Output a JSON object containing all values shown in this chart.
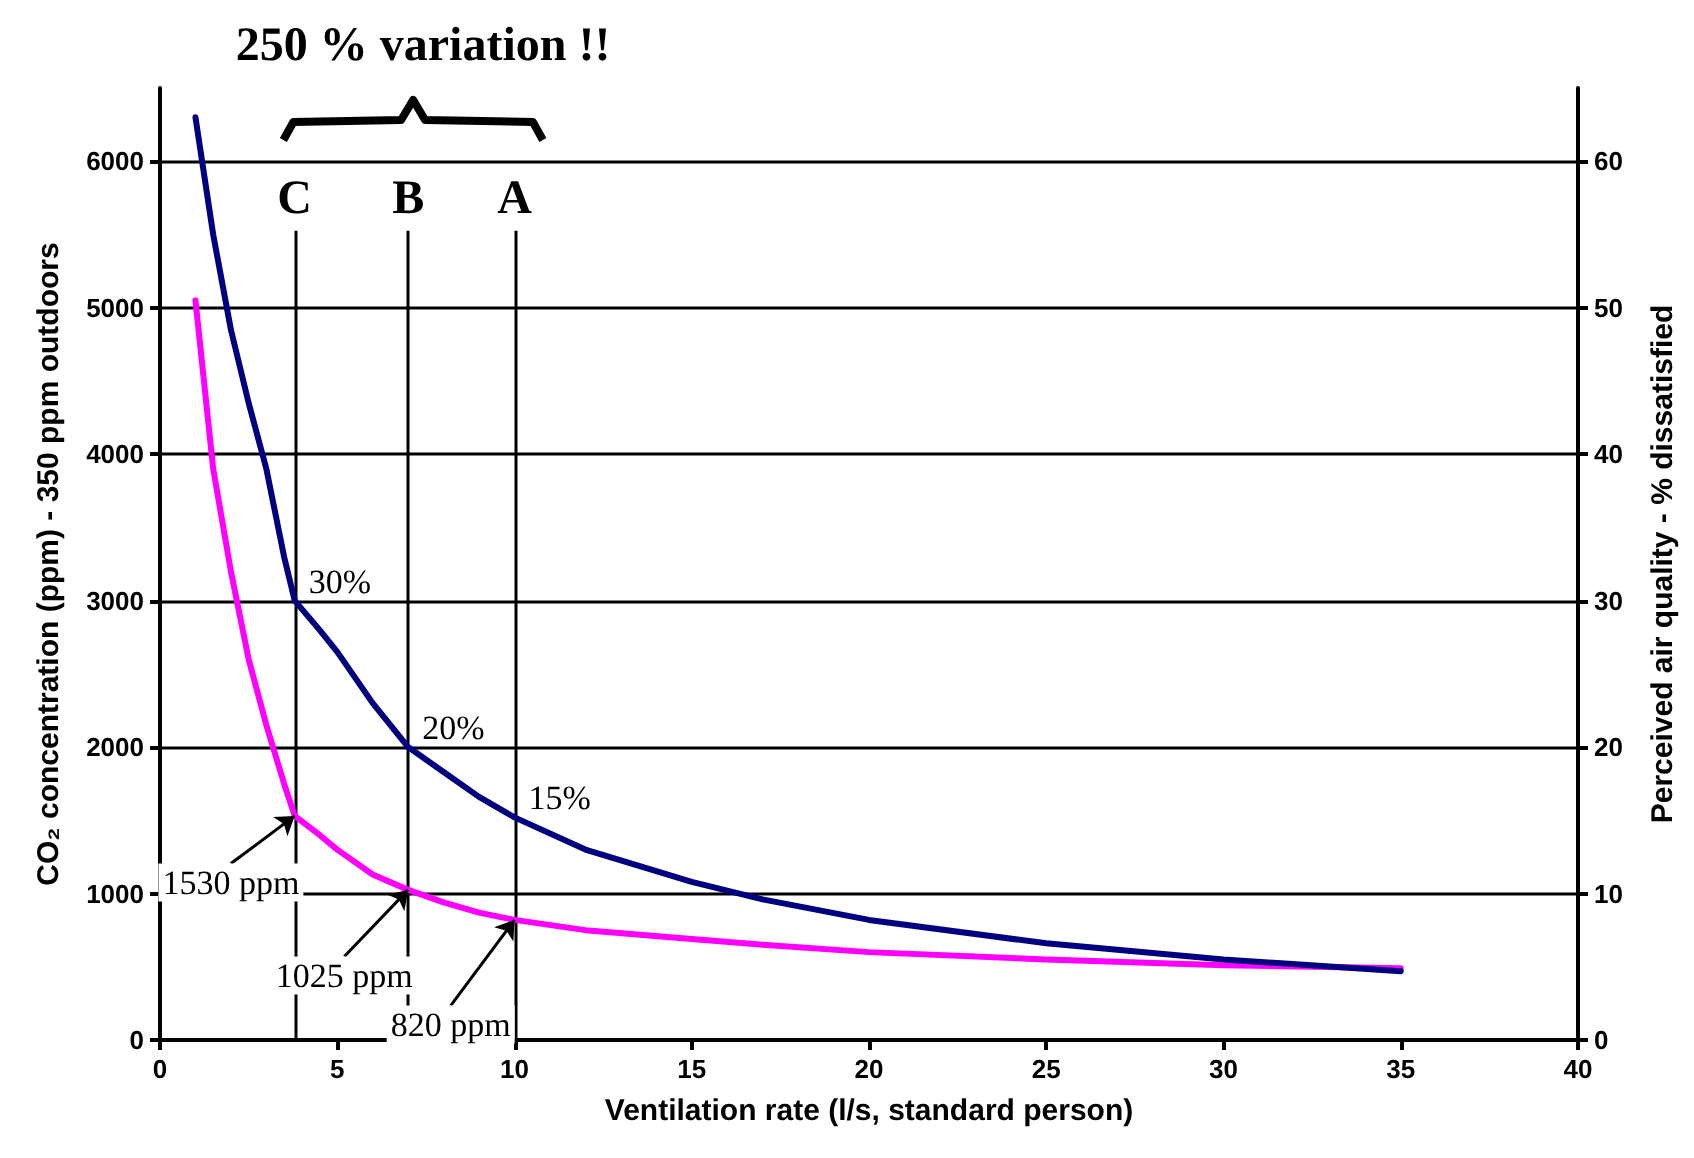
{
  "chart_data": {
    "type": "line",
    "title": "250 % variation !!",
    "xlabel": "Ventilation rate (l/s, standard person)",
    "ylabel": "CO₂ concentration (ppm) - 350 ppm outdoors",
    "y2label": "Perceived air quality - % dissatisfied",
    "x": [
      1,
      1.5,
      2,
      2.5,
      3,
      3.5,
      3.8,
      4.5,
      5,
      6,
      7,
      8,
      9,
      10,
      12,
      15,
      17,
      20,
      25,
      30,
      35
    ],
    "series": [
      {
        "color": "#ff00ff",
        "values": [
          5050,
          3900,
          3200,
          2600,
          2150,
          1750,
          1530,
          1400,
          1300,
          1130,
          1025,
          940,
          870,
          820,
          750,
          690,
          650,
          600,
          550,
          510,
          490
        ]
      },
      {
        "color": "#000080",
        "axis": "y2",
        "values": [
          63,
          55,
          48.5,
          43.5,
          39,
          33,
          30,
          28,
          26.5,
          23,
          20,
          18.3,
          16.6,
          15.2,
          13,
          10.8,
          9.6,
          8.2,
          6.6,
          5.5,
          4.7
        ]
      }
    ],
    "xlim": [
      0,
      40
    ],
    "xticks": [
      0,
      5,
      10,
      15,
      20,
      25,
      30,
      35,
      40
    ],
    "ylim": [
      0,
      6500
    ],
    "yticks": [
      0,
      1000,
      2000,
      3000,
      4000,
      5000,
      6000
    ],
    "y2lim": [
      0,
      65
    ],
    "y2ticks": [
      0,
      10,
      20,
      30,
      40,
      50,
      60
    ],
    "ref_lines": [
      {
        "axis": "x",
        "value": 3.8,
        "label": "C",
        "color": "#000000"
      },
      {
        "axis": "x",
        "value": 7,
        "label": "B",
        "color": "#000000"
      },
      {
        "axis": "x",
        "value": 10,
        "label": "A",
        "color": "#000000"
      }
    ],
    "annotations": [
      {
        "text": "30%",
        "x": 3.8,
        "y": 3000
      },
      {
        "text": "20%",
        "x": 7,
        "y": 2000
      },
      {
        "text": "15%",
        "x": 10,
        "y": 1520
      },
      {
        "text": "1530 ppm",
        "x": 3.8,
        "y": 1530
      },
      {
        "text": "1025 ppm",
        "x": 7,
        "y": 1025
      },
      {
        "text": "820 ppm",
        "x": 10,
        "y": 820
      }
    ],
    "grid": "y",
    "marker": "none",
    "line_style": "solid"
  }
}
